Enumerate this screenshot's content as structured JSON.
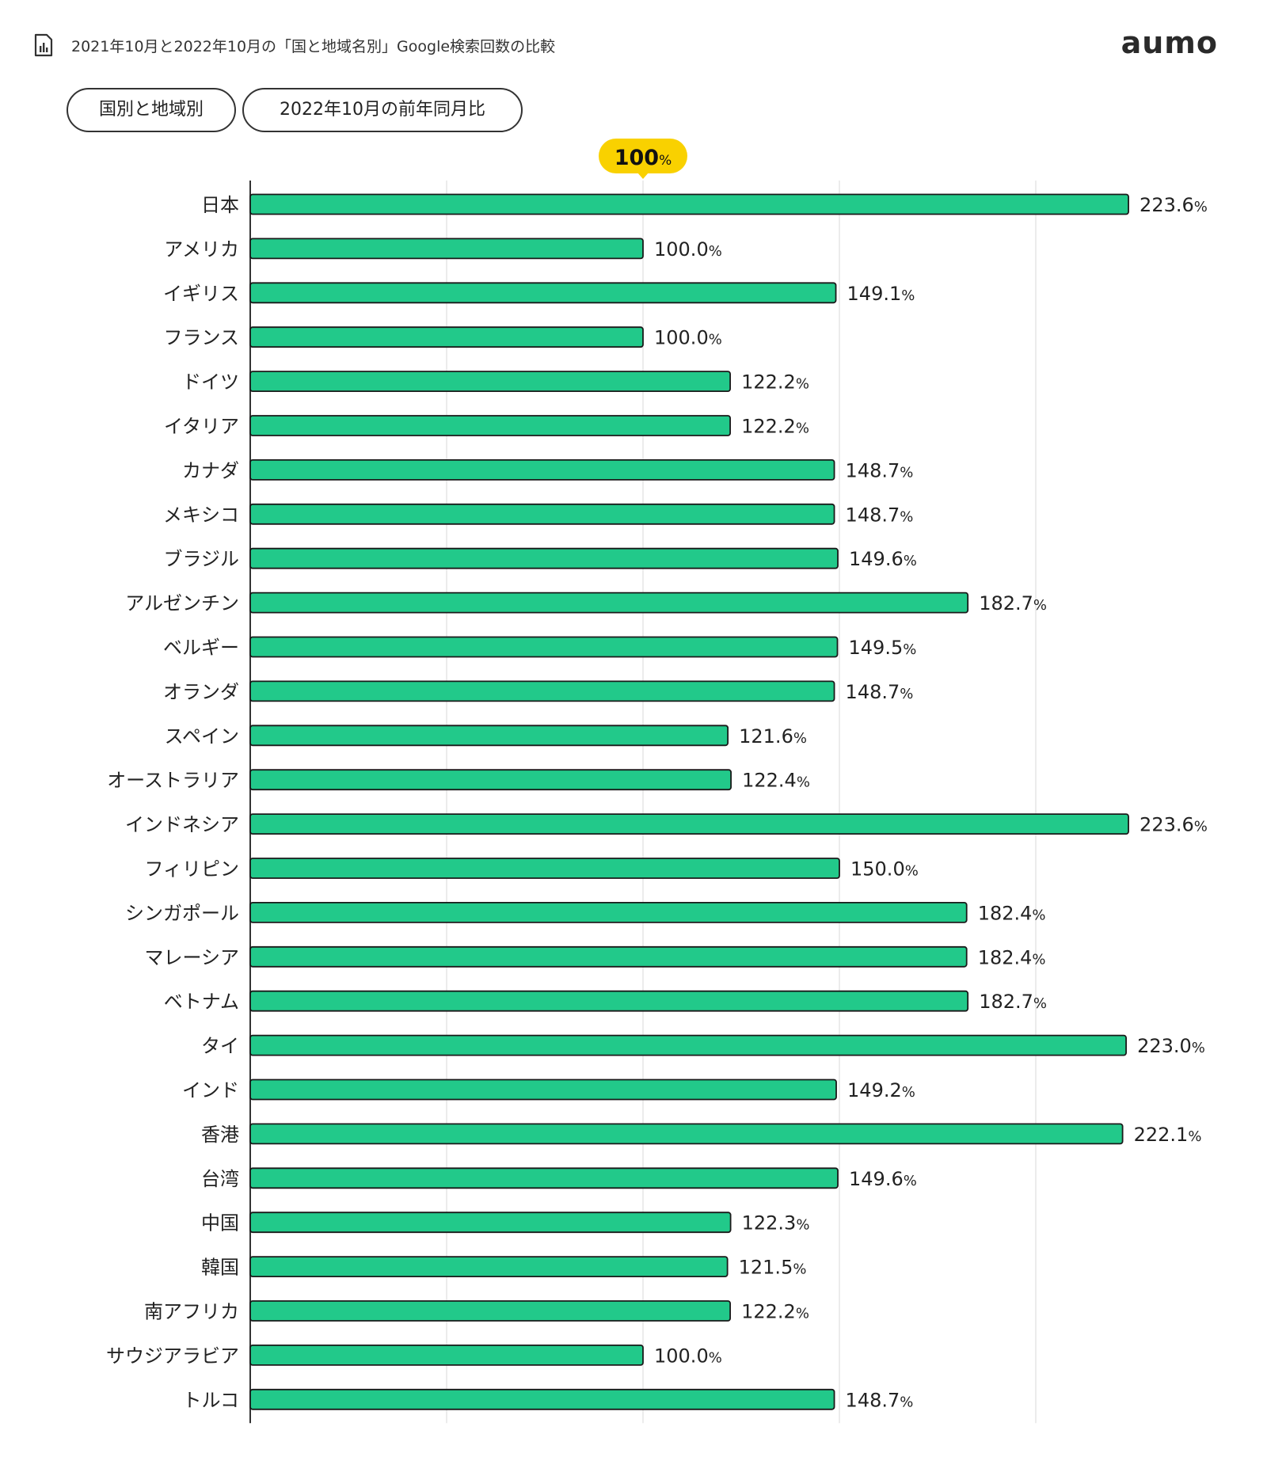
{
  "header": {
    "title": "2021年10月と2022年10月の「国と地域名別」Google検索回数の比較",
    "logo": "aumo",
    "icon": "bar-chart-document-icon"
  },
  "tabs": [
    {
      "label": "国別と地域別"
    },
    {
      "label": "2022年10月の前年同月比"
    }
  ],
  "colors": {
    "bar": "#22c98a",
    "bar_stroke": "#1a1a1a",
    "reference_badge": "#f9d100",
    "grid": "#e6e6e6",
    "axis": "#333333"
  },
  "chart_data": {
    "type": "bar",
    "orientation": "horizontal",
    "unit": "%",
    "xlim": [
      0,
      250
    ],
    "grid": true,
    "reference": {
      "value": 100,
      "label": "100",
      "unit": "%"
    },
    "categories": [
      "日本",
      "アメリカ",
      "イギリス",
      "フランス",
      "ドイツ",
      "イタリア",
      "カナダ",
      "メキシコ",
      "ブラジル",
      "アルゼンチン",
      "ベルギー",
      "オランダ",
      "スペイン",
      "オーストラリア",
      "インドネシア",
      "フィリピン",
      "シンガポール",
      "マレーシア",
      "ベトナム",
      "タイ",
      "インド",
      "香港",
      "台湾",
      "中国",
      "韓国",
      "南アフリカ",
      "サウジアラビア",
      "トルコ"
    ],
    "values": [
      223.6,
      100.0,
      149.1,
      100.0,
      122.2,
      122.2,
      148.7,
      148.7,
      149.6,
      182.7,
      149.5,
      148.7,
      121.6,
      122.4,
      223.6,
      150.0,
      182.4,
      182.4,
      182.7,
      223.0,
      149.2,
      222.1,
      149.6,
      122.3,
      121.5,
      122.2,
      100.0,
      148.7
    ],
    "value_labels": [
      "223.6",
      "100.0",
      "149.1",
      "100.0",
      "122.2",
      "122.2",
      "148.7",
      "148.7",
      "149.6",
      "182.7",
      "149.5",
      "148.7",
      "121.6",
      "122.4",
      "223.6",
      "150.0",
      "182.4",
      "182.4",
      "182.7",
      "223.0",
      "149.2",
      "222.1",
      "149.6",
      "122.3",
      "121.5",
      "122.2",
      "100.0",
      "148.7"
    ]
  }
}
